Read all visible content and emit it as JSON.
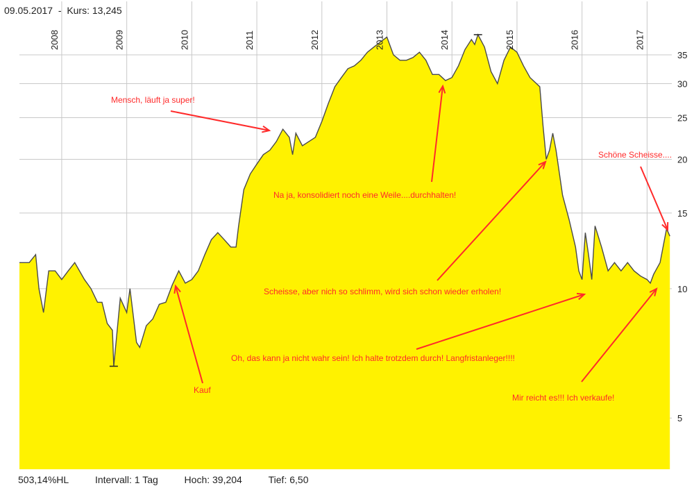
{
  "header": {
    "date": "09.05.2017",
    "separator": "-",
    "price_label": "Kurs:",
    "price_value": "13,245"
  },
  "footer": {
    "performance": "503,14%HL",
    "interval_label": "Intervall:",
    "interval_value": "1 Tag",
    "high_label": "Hoch:",
    "high_value": "39,204",
    "low_label": "Tief:",
    "low_value": "6,50"
  },
  "colors": {
    "fill": "#fff200",
    "line": "#4a4a4a",
    "grid": "#c8c8c8",
    "annotation": "#ff2a2a"
  },
  "chart_data": {
    "type": "area",
    "scale": "log",
    "ylim": [
      3.8,
      42
    ],
    "xlim": [
      2007.35,
      2017.38
    ],
    "year_ticks": [
      "2008",
      "2009",
      "2010",
      "2011",
      "2012",
      "2013",
      "2014",
      "2015",
      "2016",
      "2017"
    ],
    "y_ticks": [
      "5",
      "10",
      "15",
      "20",
      "25",
      "30",
      "35"
    ],
    "y_tick_values": [
      5,
      10,
      15,
      20,
      25,
      30,
      35
    ],
    "x": [
      2007.35,
      2007.5,
      2007.6,
      2007.65,
      2007.72,
      2007.8,
      2007.9,
      2008.0,
      2008.1,
      2008.2,
      2008.35,
      2008.45,
      2008.55,
      2008.62,
      2008.7,
      2008.78,
      2008.8,
      2008.9,
      2009.0,
      2009.05,
      2009.15,
      2009.2,
      2009.3,
      2009.4,
      2009.5,
      2009.6,
      2009.7,
      2009.8,
      2009.9,
      2010.0,
      2010.1,
      2010.2,
      2010.3,
      2010.4,
      2010.5,
      2010.6,
      2010.68,
      2010.72,
      2010.8,
      2010.9,
      2011.0,
      2011.1,
      2011.2,
      2011.3,
      2011.4,
      2011.5,
      2011.55,
      2011.6,
      2011.7,
      2011.8,
      2011.9,
      2012.0,
      2012.1,
      2012.2,
      2012.3,
      2012.4,
      2012.5,
      2012.6,
      2012.7,
      2012.8,
      2012.9,
      2013.0,
      2013.1,
      2013.2,
      2013.3,
      2013.4,
      2013.5,
      2013.6,
      2013.7,
      2013.8,
      2013.9,
      2014.0,
      2014.1,
      2014.2,
      2014.3,
      2014.35,
      2014.4,
      2014.5,
      2014.6,
      2014.7,
      2014.8,
      2014.9,
      2015.0,
      2015.1,
      2015.2,
      2015.3,
      2015.35,
      2015.4,
      2015.45,
      2015.5,
      2015.55,
      2015.6,
      2015.7,
      2015.8,
      2015.9,
      2015.95,
      2016.0,
      2016.05,
      2016.1,
      2016.15,
      2016.2,
      2016.3,
      2016.4,
      2016.5,
      2016.6,
      2016.7,
      2016.8,
      2016.9,
      2017.0,
      2017.05,
      2017.1,
      2017.2,
      2017.3,
      2017.35
    ],
    "values": [
      11.5,
      11.5,
      12.0,
      10.0,
      8.8,
      11.0,
      11.0,
      10.5,
      11.0,
      11.5,
      10.5,
      10.0,
      9.3,
      9.3,
      8.3,
      8.0,
      6.6,
      9.5,
      8.8,
      10.0,
      7.5,
      7.3,
      8.2,
      8.5,
      9.2,
      9.3,
      10.2,
      11.0,
      10.3,
      10.5,
      11.0,
      12.0,
      13.0,
      13.5,
      13.0,
      12.5,
      12.5,
      14.0,
      17.0,
      18.5,
      19.5,
      20.5,
      21.0,
      22.0,
      23.5,
      22.5,
      20.5,
      23.0,
      21.5,
      22.0,
      22.5,
      24.5,
      27.0,
      29.5,
      31.0,
      32.5,
      33.0,
      34.0,
      35.5,
      36.5,
      37.5,
      38.5,
      35.0,
      34.0,
      34.0,
      34.5,
      35.5,
      34.0,
      31.5,
      31.5,
      30.5,
      31.0,
      33.0,
      36.0,
      38.0,
      37.0,
      39.0,
      36.5,
      32.0,
      30.0,
      34.0,
      36.5,
      35.5,
      33.0,
      31.0,
      30.0,
      29.5,
      24.0,
      20.0,
      21.0,
      23.0,
      21.0,
      16.5,
      14.5,
      12.5,
      11.0,
      10.5,
      13.5,
      12.0,
      10.5,
      14.0,
      12.5,
      11.0,
      11.5,
      11.0,
      11.5,
      11.0,
      10.7,
      10.5,
      10.3,
      10.8,
      11.5,
      13.8,
      13.25
    ],
    "annotations": [
      {
        "text": "Mensch, läuft ja super!"
      },
      {
        "text": "Na ja, konsolidiert noch eine Weile....durchhalten!"
      },
      {
        "text": "Schöne Scheisse...."
      },
      {
        "text": "Scheisse, aber nich so schlimm, wird sich schon wieder erholen!"
      },
      {
        "text": "Oh, das kann ja nicht wahr sein! Ich halte trotzdem durch! Langfristanleger!!!!"
      },
      {
        "text": "Kauf"
      },
      {
        "text": "Mir reicht es!!! Ich verkaufe!"
      }
    ]
  }
}
